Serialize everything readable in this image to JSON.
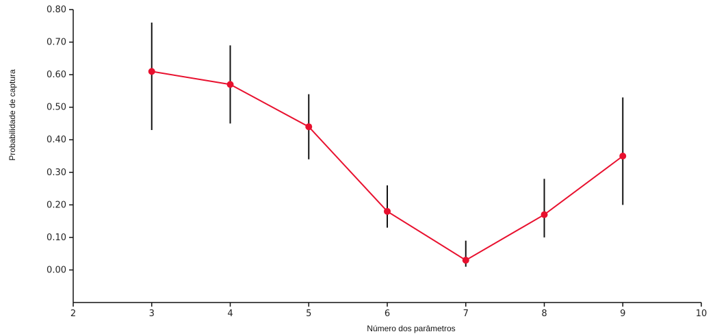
{
  "chart_data": {
    "type": "line",
    "title": "",
    "xlabel": "Número dos parâmetros",
    "ylabel": "Probabilidade de captura",
    "xlim": [
      2,
      10
    ],
    "ylim": [
      -0.1,
      0.8
    ],
    "x_ticks": [
      2,
      3,
      4,
      5,
      6,
      7,
      8,
      9,
      10
    ],
    "x_tick_labels": [
      "2",
      "3",
      "4",
      "5",
      "6",
      "7",
      "8",
      "9",
      "10"
    ],
    "y_ticks": [
      0.0,
      0.1,
      0.2,
      0.3,
      0.4,
      0.5,
      0.6,
      0.7,
      0.8
    ],
    "y_tick_labels": [
      "0.00",
      "0.10",
      "0.20",
      "0.30",
      "0.40",
      "0.50",
      "0.60",
      "0.70",
      "0.80"
    ],
    "grid": false,
    "series": [
      {
        "x": [
          3,
          4,
          5,
          6,
          7,
          8,
          9
        ],
        "y": [
          0.61,
          0.57,
          0.44,
          0.18,
          0.03,
          0.17,
          0.35
        ],
        "y_lower": [
          0.43,
          0.45,
          0.34,
          0.13,
          0.01,
          0.1,
          0.2
        ],
        "y_upper": [
          0.76,
          0.69,
          0.54,
          0.26,
          0.09,
          0.28,
          0.53
        ],
        "line_color": "#e8102e",
        "marker_color": "#e8102e",
        "errorbar_color": "#111111"
      }
    ]
  }
}
